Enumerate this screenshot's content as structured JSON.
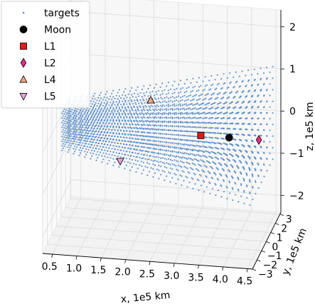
{
  "chart_data": {
    "type": "scatter",
    "projection": "3d",
    "grid": true,
    "legend_placement": "top-left",
    "xlabel": "x, 1e5 km",
    "ylabel": "y, 1e5 km",
    "zlabel": "z, 1e5 km",
    "xlim": [
      0.3,
      4.6
    ],
    "ylim": [
      -3,
      3.2
    ],
    "zlim": [
      -2.4,
      2.4
    ],
    "xticks": [
      "0.5",
      "1.0",
      "1.5",
      "2.0",
      "2.5",
      "3.0",
      "3.5",
      "4.0",
      "4.5"
    ],
    "yticks": [
      "−3",
      "−2",
      "−1",
      "0",
      "1",
      "2",
      "3"
    ],
    "zticks": [
      "−2",
      "−1",
      "0",
      "1",
      "2"
    ],
    "targets": {
      "name": "targets",
      "color": "#4f86c6",
      "grid_description": "regular lattice of target points",
      "x_range": [
        0.5,
        4.5
      ],
      "y_range": [
        -2.5,
        2.5
      ],
      "z_range": [
        -1.0,
        1.2
      ]
    },
    "series": [
      {
        "name": "Moon",
        "marker": "circle",
        "color": "#000000",
        "x": 3.84,
        "y": 0.0,
        "z": 0.0
      },
      {
        "name": "L1",
        "marker": "square",
        "color": "#e31a1c",
        "x": 3.26,
        "y": 0.0,
        "z": 0.0
      },
      {
        "name": "L2",
        "marker": "diamond",
        "color": "#e7298a",
        "x": 4.45,
        "y": 0.0,
        "z": 0.0
      },
      {
        "name": "L4",
        "marker": "triangle-up",
        "color": "#f4a582",
        "x": 1.92,
        "y": 3.33,
        "z": 0.0
      },
      {
        "name": "L5",
        "marker": "triangle-down",
        "color": "#e7a3e0",
        "x": 1.92,
        "y": -3.33,
        "z": 0.0
      }
    ]
  }
}
